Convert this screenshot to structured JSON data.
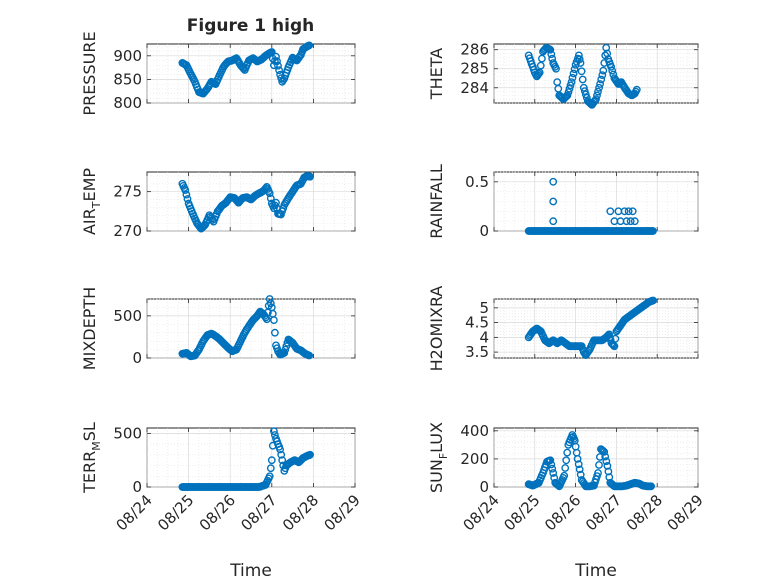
{
  "figure": {
    "title": "Figure 1 high"
  },
  "chart_data": [
    {
      "id": "pressure",
      "type": "scatter",
      "title": "Figure 1 high",
      "ylabel": "PRESSURE",
      "ylabel_sub": null,
      "ylabel_end": null,
      "xlabel": "",
      "ylim": [
        800,
        925
      ],
      "yticks": [
        800,
        850,
        900
      ],
      "ytick_labels": [
        "800",
        "850",
        "900"
      ],
      "xlim": [
        0,
        5
      ],
      "xticks": [
        0,
        1,
        2,
        3,
        4,
        5
      ],
      "grid": true,
      "marker_color": "#0072bd",
      "knots": [
        [
          0.85,
          885
        ],
        [
          0.95,
          880
        ],
        [
          1.05,
          862
        ],
        [
          1.15,
          845
        ],
        [
          1.25,
          823
        ],
        [
          1.35,
          820
        ],
        [
          1.45,
          830
        ],
        [
          1.55,
          845
        ],
        [
          1.65,
          840
        ],
        [
          1.75,
          860
        ],
        [
          1.85,
          878
        ],
        [
          1.95,
          888
        ],
        [
          2.05,
          890
        ],
        [
          2.15,
          895
        ],
        [
          2.25,
          880
        ],
        [
          2.35,
          870
        ],
        [
          2.45,
          890
        ],
        [
          2.55,
          895
        ],
        [
          2.65,
          888
        ],
        [
          2.75,
          892
        ],
        [
          2.85,
          900
        ],
        [
          2.95,
          906
        ],
        [
          3.0,
          908
        ],
        [
          3.05,
          880
        ],
        [
          3.1,
          898
        ],
        [
          3.2,
          860
        ],
        [
          3.25,
          845
        ],
        [
          3.3,
          852
        ],
        [
          3.4,
          876
        ],
        [
          3.5,
          896
        ],
        [
          3.6,
          890
        ],
        [
          3.7,
          902
        ],
        [
          3.75,
          914
        ],
        [
          3.85,
          920
        ],
        [
          3.9,
          922
        ]
      ]
    },
    {
      "id": "theta",
      "type": "scatter",
      "ylabel": "THETA",
      "ylabel_sub": null,
      "ylabel_end": null,
      "xlabel": "",
      "ylim": [
        283.2,
        286.3
      ],
      "yticks": [
        284,
        285,
        286
      ],
      "ytick_labels": [
        "284",
        "285",
        "286"
      ],
      "xlim": [
        0,
        5
      ],
      "xticks": [
        0,
        1,
        2,
        3,
        4,
        5
      ],
      "grid": true,
      "marker_color": "#0072bd",
      "knots": [
        [
          0.85,
          285.7
        ],
        [
          0.95,
          285.1
        ],
        [
          1.0,
          284.8
        ],
        [
          1.05,
          284.6
        ],
        [
          1.12,
          284.8
        ],
        [
          1.2,
          285.9
        ],
        [
          1.28,
          286.1
        ],
        [
          1.38,
          286.0
        ],
        [
          1.45,
          285.3
        ],
        [
          1.52,
          285.0
        ],
        [
          1.55,
          284.3
        ],
        [
          1.6,
          283.6
        ],
        [
          1.7,
          283.4
        ],
        [
          1.8,
          283.6
        ],
        [
          1.9,
          284.3
        ],
        [
          2.0,
          285.2
        ],
        [
          2.08,
          285.7
        ],
        [
          2.12,
          285.3
        ],
        [
          2.2,
          284.0
        ],
        [
          2.3,
          283.3
        ],
        [
          2.4,
          283.1
        ],
        [
          2.5,
          283.4
        ],
        [
          2.6,
          284.2
        ],
        [
          2.68,
          284.9
        ],
        [
          2.75,
          286.1
        ],
        [
          2.8,
          285.5
        ],
        [
          2.87,
          285.1
        ],
        [
          2.95,
          284.5
        ],
        [
          3.05,
          284.2
        ],
        [
          3.12,
          284.3
        ],
        [
          3.2,
          284.0
        ],
        [
          3.3,
          283.7
        ],
        [
          3.38,
          283.6
        ],
        [
          3.45,
          283.7
        ],
        [
          3.5,
          283.9
        ]
      ]
    },
    {
      "id": "air-temp",
      "type": "scatter",
      "ylabel": "AIR",
      "ylabel_sub": "T",
      "ylabel_end": "EMP",
      "xlabel": "",
      "ylim": [
        270,
        277.5
      ],
      "yticks": [
        270,
        275
      ],
      "ytick_labels": [
        "270",
        "275"
      ],
      "xlim": [
        0,
        5
      ],
      "xticks": [
        0,
        1,
        2,
        3,
        4,
        5
      ],
      "grid": true,
      "marker_color": "#0072bd",
      "knots": [
        [
          0.85,
          276.0
        ],
        [
          0.92,
          275.2
        ],
        [
          1.0,
          273.5
        ],
        [
          1.1,
          272.2
        ],
        [
          1.2,
          271.0
        ],
        [
          1.3,
          270.3
        ],
        [
          1.4,
          270.8
        ],
        [
          1.5,
          272.0
        ],
        [
          1.6,
          271.2
        ],
        [
          1.7,
          272.5
        ],
        [
          1.8,
          273.2
        ],
        [
          1.9,
          273.6
        ],
        [
          2.0,
          274.3
        ],
        [
          2.1,
          274.2
        ],
        [
          2.2,
          273.6
        ],
        [
          2.3,
          274.2
        ],
        [
          2.4,
          274.3
        ],
        [
          2.5,
          274.0
        ],
        [
          2.6,
          274.5
        ],
        [
          2.7,
          274.8
        ],
        [
          2.8,
          275.1
        ],
        [
          2.88,
          275.6
        ],
        [
          2.95,
          274.8
        ],
        [
          3.0,
          273.5
        ],
        [
          3.05,
          272.9
        ],
        [
          3.1,
          273.6
        ],
        [
          3.15,
          272.2
        ],
        [
          3.22,
          272.1
        ],
        [
          3.3,
          273.3
        ],
        [
          3.4,
          274.2
        ],
        [
          3.5,
          275.0
        ],
        [
          3.6,
          275.8
        ],
        [
          3.7,
          276.0
        ],
        [
          3.78,
          276.8
        ],
        [
          3.85,
          277.0
        ],
        [
          3.92,
          276.9
        ]
      ]
    },
    {
      "id": "rainfall",
      "type": "scatter",
      "ylabel": "RAINFALL",
      "ylabel_sub": null,
      "ylabel_end": null,
      "xlabel": "",
      "ylim": [
        0,
        0.6
      ],
      "yticks": [
        0,
        0.5
      ],
      "ytick_labels": [
        "0",
        "0.5"
      ],
      "xlim": [
        0,
        5
      ],
      "xticks": [
        0,
        1,
        2,
        3,
        4,
        5
      ],
      "grid": true,
      "marker_color": "#0072bd",
      "baseline_range": [
        0.85,
        3.92
      ],
      "baseline_value": 0,
      "extra_points": [
        [
          1.45,
          0.5
        ],
        [
          1.45,
          0.3
        ],
        [
          1.45,
          0.1
        ],
        [
          2.85,
          0.2
        ],
        [
          2.95,
          0.1
        ],
        [
          3.05,
          0.2
        ],
        [
          3.1,
          0.1
        ],
        [
          3.2,
          0.2
        ],
        [
          3.25,
          0.1
        ],
        [
          3.3,
          0.2
        ],
        [
          3.35,
          0.1
        ],
        [
          3.4,
          0.2
        ],
        [
          3.45,
          0.1
        ]
      ]
    },
    {
      "id": "mixdepth",
      "type": "scatter",
      "ylabel": "MIXDEPTH",
      "ylabel_sub": null,
      "ylabel_end": null,
      "xlabel": "",
      "ylim": [
        0,
        700
      ],
      "yticks": [
        0,
        500
      ],
      "ytick_labels": [
        "0",
        "500"
      ],
      "xlim": [
        0,
        5
      ],
      "xticks": [
        0,
        1,
        2,
        3,
        4,
        5
      ],
      "grid": true,
      "marker_color": "#0072bd",
      "knots": [
        [
          0.85,
          50
        ],
        [
          0.95,
          60
        ],
        [
          1.05,
          20
        ],
        [
          1.15,
          30
        ],
        [
          1.25,
          100
        ],
        [
          1.35,
          200
        ],
        [
          1.45,
          270
        ],
        [
          1.55,
          290
        ],
        [
          1.65,
          260
        ],
        [
          1.75,
          220
        ],
        [
          1.85,
          170
        ],
        [
          1.95,
          120
        ],
        [
          2.05,
          80
        ],
        [
          2.15,
          100
        ],
        [
          2.25,
          200
        ],
        [
          2.35,
          300
        ],
        [
          2.45,
          380
        ],
        [
          2.55,
          450
        ],
        [
          2.65,
          500
        ],
        [
          2.72,
          550
        ],
        [
          2.8,
          520
        ],
        [
          2.88,
          460
        ],
        [
          2.95,
          700
        ],
        [
          3.0,
          600
        ],
        [
          3.05,
          450
        ],
        [
          3.1,
          150
        ],
        [
          3.15,
          80
        ],
        [
          3.2,
          40
        ],
        [
          3.3,
          60
        ],
        [
          3.4,
          220
        ],
        [
          3.5,
          180
        ],
        [
          3.6,
          110
        ],
        [
          3.7,
          90
        ],
        [
          3.8,
          50
        ],
        [
          3.9,
          30
        ]
      ]
    },
    {
      "id": "h2omixra",
      "type": "scatter",
      "ylabel": "H2OMIXRA",
      "ylabel_sub": null,
      "ylabel_end": null,
      "xlabel": "",
      "ylim": [
        3.3,
        5.3
      ],
      "yticks": [
        3.5,
        4,
        4.5,
        5
      ],
      "ytick_labels": [
        "3.5",
        "4",
        "4.5",
        "5"
      ],
      "xlim": [
        0,
        5
      ],
      "xticks": [
        0,
        1,
        2,
        3,
        4,
        5
      ],
      "grid": true,
      "marker_color": "#0072bd",
      "knots": [
        [
          0.85,
          4.0
        ],
        [
          0.95,
          4.2
        ],
        [
          1.05,
          4.3
        ],
        [
          1.15,
          4.2
        ],
        [
          1.25,
          3.9
        ],
        [
          1.35,
          3.8
        ],
        [
          1.45,
          3.9
        ],
        [
          1.55,
          3.8
        ],
        [
          1.65,
          3.9
        ],
        [
          1.75,
          3.8
        ],
        [
          1.85,
          3.7
        ],
        [
          1.95,
          3.7
        ],
        [
          2.05,
          3.7
        ],
        [
          2.15,
          3.7
        ],
        [
          2.2,
          3.5
        ],
        [
          2.25,
          3.4
        ],
        [
          2.35,
          3.6
        ],
        [
          2.45,
          3.9
        ],
        [
          2.55,
          3.9
        ],
        [
          2.65,
          3.9
        ],
        [
          2.75,
          4.0
        ],
        [
          2.82,
          4.1
        ],
        [
          2.88,
          3.8
        ],
        [
          2.95,
          3.7
        ],
        [
          3.0,
          4.2
        ],
        [
          3.1,
          4.4
        ],
        [
          3.2,
          4.6
        ],
        [
          3.3,
          4.7
        ],
        [
          3.4,
          4.8
        ],
        [
          3.5,
          4.9
        ],
        [
          3.6,
          5.0
        ],
        [
          3.7,
          5.1
        ],
        [
          3.8,
          5.2
        ],
        [
          3.9,
          5.25
        ]
      ]
    },
    {
      "id": "terr-msl",
      "type": "scatter",
      "ylabel": "TERR",
      "ylabel_sub": "M",
      "ylabel_end": "SL",
      "xlabel": "Time",
      "ylim": [
        0,
        550
      ],
      "yticks": [
        0,
        500
      ],
      "ytick_labels": [
        "0",
        "500"
      ],
      "xlim": [
        0,
        5
      ],
      "xticks": [
        0,
        1,
        2,
        3,
        4,
        5
      ],
      "xtick_labels": [
        "08/24",
        "08/25",
        "08/26",
        "08/27",
        "08/28",
        "08/29"
      ],
      "grid": true,
      "marker_color": "#0072bd",
      "knots": [
        [
          0.85,
          0
        ],
        [
          1.2,
          0
        ],
        [
          1.6,
          0
        ],
        [
          2.0,
          0
        ],
        [
          2.4,
          0
        ],
        [
          2.7,
          0
        ],
        [
          2.85,
          20
        ],
        [
          2.95,
          100
        ],
        [
          3.0,
          250
        ],
        [
          3.05,
          520
        ],
        [
          3.1,
          450
        ],
        [
          3.2,
          350
        ],
        [
          3.3,
          150
        ],
        [
          3.35,
          200
        ],
        [
          3.45,
          230
        ],
        [
          3.55,
          250
        ],
        [
          3.65,
          230
        ],
        [
          3.75,
          270
        ],
        [
          3.85,
          290
        ],
        [
          3.92,
          300
        ]
      ]
    },
    {
      "id": "sun-flux",
      "type": "scatter",
      "ylabel": "SUN",
      "ylabel_sub": "F",
      "ylabel_end": "LUX",
      "xlabel": "Time",
      "ylim": [
        0,
        420
      ],
      "yticks": [
        0,
        200,
        400
      ],
      "ytick_labels": [
        "0",
        "200",
        "400"
      ],
      "xlim": [
        0,
        5
      ],
      "xticks": [
        0,
        1,
        2,
        3,
        4,
        5
      ],
      "xtick_labels": [
        "08/24",
        "08/25",
        "08/26",
        "08/27",
        "08/28",
        "08/29"
      ],
      "grid": true,
      "marker_color": "#0072bd",
      "knots": [
        [
          0.85,
          20
        ],
        [
          0.95,
          10
        ],
        [
          1.1,
          30
        ],
        [
          1.2,
          100
        ],
        [
          1.3,
          180
        ],
        [
          1.38,
          190
        ],
        [
          1.45,
          100
        ],
        [
          1.5,
          30
        ],
        [
          1.6,
          5
        ],
        [
          1.72,
          80
        ],
        [
          1.82,
          300
        ],
        [
          1.92,
          370
        ],
        [
          1.98,
          330
        ],
        [
          2.05,
          200
        ],
        [
          2.15,
          50
        ],
        [
          2.25,
          5
        ],
        [
          2.35,
          5
        ],
        [
          2.45,
          10
        ],
        [
          2.55,
          100
        ],
        [
          2.62,
          270
        ],
        [
          2.7,
          250
        ],
        [
          2.78,
          150
        ],
        [
          2.85,
          30
        ],
        [
          2.95,
          5
        ],
        [
          3.05,
          5
        ],
        [
          3.15,
          5
        ],
        [
          3.25,
          10
        ],
        [
          3.35,
          20
        ],
        [
          3.45,
          30
        ],
        [
          3.55,
          25
        ],
        [
          3.65,
          10
        ],
        [
          3.75,
          5
        ],
        [
          3.85,
          5
        ]
      ]
    }
  ]
}
